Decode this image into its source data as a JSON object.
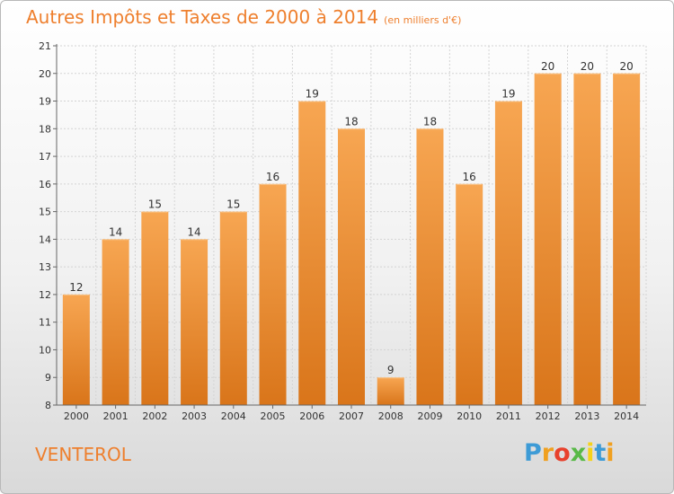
{
  "header": {
    "title": "Autres Impôts et Taxes de 2000 à 2014",
    "subtitle": "(en milliers d'€)"
  },
  "footer": {
    "commune": "VENTEROL"
  },
  "logo": {
    "letters": [
      "P",
      "r",
      "o",
      "x",
      "i",
      "t",
      "i"
    ]
  },
  "colors": {
    "accent": "#ee7f2d",
    "bar_top": "#f7a652",
    "bar_bottom": "#d9751a"
  },
  "chart_data": {
    "type": "bar",
    "title": "Autres Impôts et Taxes de 2000 à 2014",
    "subtitle": "(en milliers d'€)",
    "categories": [
      "2000",
      "2001",
      "2002",
      "2003",
      "2004",
      "2005",
      "2006",
      "2007",
      "2008",
      "2009",
      "2010",
      "2011",
      "2012",
      "2013",
      "2014"
    ],
    "values": [
      12,
      14,
      15,
      14,
      15,
      16,
      19,
      18,
      9,
      18,
      16,
      19,
      20,
      20,
      20
    ],
    "ylim": [
      8,
      21
    ],
    "yticks": [
      8,
      9,
      10,
      11,
      12,
      13,
      14,
      15,
      16,
      17,
      18,
      19,
      20,
      21
    ],
    "grid": true,
    "xlabel": "",
    "ylabel": ""
  }
}
